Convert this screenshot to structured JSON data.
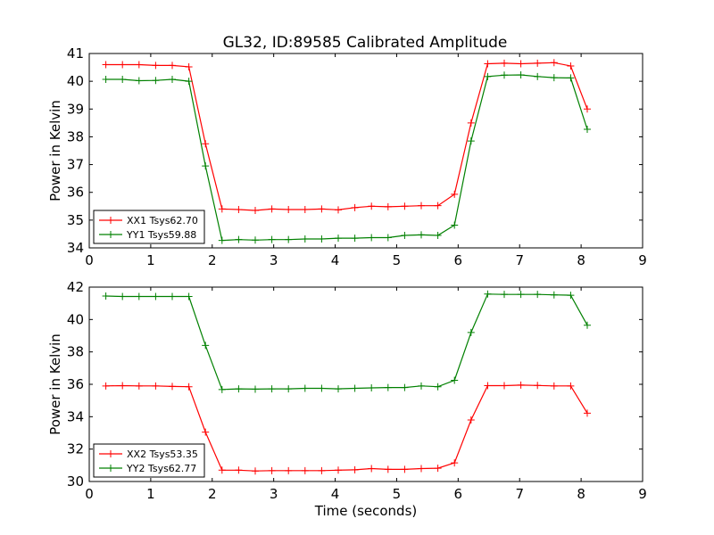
{
  "figure": {
    "title": "GL32, ID:89585 Calibrated Amplitude"
  },
  "chart_data": [
    {
      "type": "line",
      "title": "GL32, ID:89585 Calibrated Amplitude",
      "xlabel": "",
      "ylabel": "Power in Kelvin",
      "xlim": [
        0,
        9
      ],
      "ylim": [
        34,
        41
      ],
      "xticks": [
        "0",
        "1",
        "2",
        "3",
        "4",
        "5",
        "6",
        "7",
        "8",
        "9"
      ],
      "yticks": [
        "34",
        "35",
        "36",
        "37",
        "38",
        "39",
        "40",
        "41"
      ],
      "legend_position": "lower-left",
      "x": [
        0.27,
        0.54,
        0.81,
        1.08,
        1.35,
        1.62,
        1.89,
        2.16,
        2.43,
        2.7,
        2.97,
        3.24,
        3.51,
        3.78,
        4.05,
        4.32,
        4.59,
        4.86,
        5.13,
        5.4,
        5.67,
        5.94,
        6.21,
        6.48,
        6.75,
        7.02,
        7.29,
        7.56,
        7.83,
        8.1
      ],
      "series": [
        {
          "name": "XX1 Tsys62.70",
          "color": "#ff0000",
          "values": [
            40.6,
            40.6,
            40.6,
            40.57,
            40.57,
            40.52,
            37.75,
            35.4,
            35.38,
            35.35,
            35.4,
            35.38,
            35.38,
            35.4,
            35.37,
            35.45,
            35.5,
            35.48,
            35.5,
            35.52,
            35.52,
            35.93,
            38.5,
            40.63,
            40.65,
            40.63,
            40.65,
            40.67,
            40.55,
            39.0
          ]
        },
        {
          "name": "YY1 Tsys59.88",
          "color": "#008000",
          "values": [
            40.07,
            40.07,
            40.02,
            40.03,
            40.07,
            40.0,
            36.95,
            34.27,
            34.3,
            34.28,
            34.3,
            34.3,
            34.32,
            34.32,
            34.35,
            34.35,
            34.37,
            34.37,
            34.45,
            34.47,
            34.45,
            34.82,
            37.85,
            40.17,
            40.22,
            40.23,
            40.17,
            40.13,
            40.12,
            38.27
          ]
        }
      ]
    },
    {
      "type": "line",
      "title": "",
      "xlabel": "Time (seconds)",
      "ylabel": "Power in Kelvin",
      "xlim": [
        0,
        9
      ],
      "ylim": [
        30,
        42
      ],
      "xticks": [
        "0",
        "1",
        "2",
        "3",
        "4",
        "5",
        "6",
        "7",
        "8",
        "9"
      ],
      "yticks": [
        "30",
        "32",
        "34",
        "36",
        "38",
        "40",
        "42"
      ],
      "legend_position": "lower-left",
      "x": [
        0.27,
        0.54,
        0.81,
        1.08,
        1.35,
        1.62,
        1.89,
        2.16,
        2.43,
        2.7,
        2.97,
        3.24,
        3.51,
        3.78,
        4.05,
        4.32,
        4.59,
        4.86,
        5.13,
        5.4,
        5.67,
        5.94,
        6.21,
        6.48,
        6.75,
        7.02,
        7.29,
        7.56,
        7.83,
        8.1
      ],
      "series": [
        {
          "name": "XX2 Tsys53.35",
          "color": "#ff0000",
          "values": [
            35.9,
            35.92,
            35.9,
            35.9,
            35.87,
            35.85,
            33.05,
            30.7,
            30.7,
            30.65,
            30.67,
            30.67,
            30.67,
            30.67,
            30.7,
            30.72,
            30.8,
            30.75,
            30.75,
            30.8,
            30.82,
            31.15,
            33.8,
            35.92,
            35.92,
            35.95,
            35.93,
            35.9,
            35.9,
            34.22
          ]
        },
        {
          "name": "YY2 Tsys62.77",
          "color": "#008000",
          "values": [
            41.45,
            41.42,
            41.42,
            41.42,
            41.42,
            41.42,
            38.4,
            35.68,
            35.72,
            35.7,
            35.72,
            35.72,
            35.75,
            35.75,
            35.72,
            35.75,
            35.78,
            35.8,
            35.8,
            35.9,
            35.85,
            36.25,
            39.2,
            41.57,
            41.55,
            41.55,
            41.55,
            41.52,
            41.5,
            39.65
          ]
        }
      ]
    }
  ]
}
